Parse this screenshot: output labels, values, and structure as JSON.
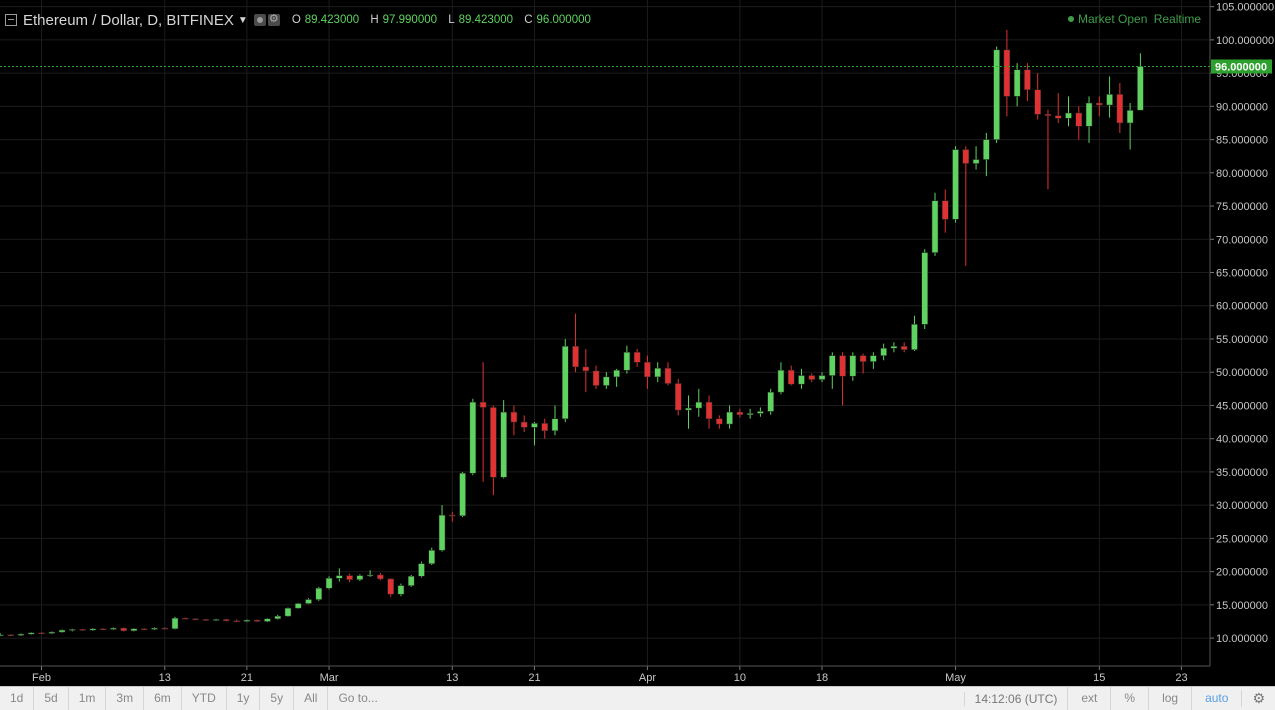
{
  "header": {
    "title": "Ethereum / Dollar, D, BITFINEX",
    "dropdown_icon": "caret-down-icon",
    "ohlc": {
      "o_label": "O",
      "o_value": "89.423000",
      "h_label": "H",
      "h_value": "97.990000",
      "l_label": "L",
      "l_value": "89.423000",
      "c_label": "C",
      "c_value": "96.000000"
    },
    "market_status": "Market Open",
    "realtime": "Realtime"
  },
  "colors": {
    "background": "#000000",
    "up": "#5fd35f",
    "down": "#e03232",
    "grid": "#1c1c1c",
    "last_price_tag": "#2ea02e"
  },
  "chart_data": {
    "type": "candlestick",
    "title": "Ethereum / Dollar, D, BITFINEX",
    "xlabel": "",
    "ylabel": "",
    "ylim": [
      5.8,
      106
    ],
    "y_ticks": [
      "105.000000",
      "100.000000",
      "95.000000",
      "90.000000",
      "85.000000",
      "80.000000",
      "75.000000",
      "70.000000",
      "65.000000",
      "60.000000",
      "55.000000",
      "50.000000",
      "45.000000",
      "40.000000",
      "35.000000",
      "30.000000",
      "25.000000",
      "20.000000",
      "15.000000",
      "10.000000"
    ],
    "x_ticks": [
      {
        "label": "Feb",
        "date": "2017-02-01"
      },
      {
        "label": "13",
        "date": "2017-02-13"
      },
      {
        "label": "21",
        "date": "2017-02-21"
      },
      {
        "label": "Mar",
        "date": "2017-03-01"
      },
      {
        "label": "13",
        "date": "2017-03-13"
      },
      {
        "label": "21",
        "date": "2017-03-21"
      },
      {
        "label": "Apr",
        "date": "2017-04-01"
      },
      {
        "label": "10",
        "date": "2017-04-10"
      },
      {
        "label": "18",
        "date": "2017-04-18"
      },
      {
        "label": "May",
        "date": "2017-05-01"
      },
      {
        "label": "15",
        "date": "2017-05-15"
      },
      {
        "label": "23",
        "date": "2017-05-23"
      }
    ],
    "grid": true,
    "last_price": 96.0,
    "last_price_label": "96.000000",
    "candles": [
      {
        "date": "2017-01-28",
        "o": 10.5,
        "h": 10.7,
        "l": 10.3,
        "c": 10.5
      },
      {
        "date": "2017-01-29",
        "o": 10.5,
        "h": 10.6,
        "l": 10.3,
        "c": 10.4
      },
      {
        "date": "2017-01-30",
        "o": 10.4,
        "h": 10.7,
        "l": 10.3,
        "c": 10.6
      },
      {
        "date": "2017-01-31",
        "o": 10.6,
        "h": 10.9,
        "l": 10.5,
        "c": 10.8
      },
      {
        "date": "2017-02-01",
        "o": 10.8,
        "h": 10.9,
        "l": 10.6,
        "c": 10.7
      },
      {
        "date": "2017-02-02",
        "o": 10.7,
        "h": 11.0,
        "l": 10.6,
        "c": 10.9
      },
      {
        "date": "2017-02-03",
        "o": 10.9,
        "h": 11.3,
        "l": 10.8,
        "c": 11.2
      },
      {
        "date": "2017-02-04",
        "o": 11.2,
        "h": 11.4,
        "l": 11.0,
        "c": 11.3
      },
      {
        "date": "2017-02-05",
        "o": 11.3,
        "h": 11.4,
        "l": 11.1,
        "c": 11.2
      },
      {
        "date": "2017-02-06",
        "o": 11.2,
        "h": 11.5,
        "l": 11.1,
        "c": 11.4
      },
      {
        "date": "2017-02-07",
        "o": 11.4,
        "h": 11.5,
        "l": 11.2,
        "c": 11.3
      },
      {
        "date": "2017-02-08",
        "o": 11.3,
        "h": 11.6,
        "l": 11.2,
        "c": 11.5
      },
      {
        "date": "2017-02-09",
        "o": 11.5,
        "h": 11.6,
        "l": 11.0,
        "c": 11.1
      },
      {
        "date": "2017-02-10",
        "o": 11.1,
        "h": 11.5,
        "l": 11.0,
        "c": 11.4
      },
      {
        "date": "2017-02-11",
        "o": 11.4,
        "h": 11.5,
        "l": 11.2,
        "c": 11.3
      },
      {
        "date": "2017-02-12",
        "o": 11.3,
        "h": 11.6,
        "l": 11.2,
        "c": 11.5
      },
      {
        "date": "2017-02-13",
        "o": 11.5,
        "h": 11.6,
        "l": 11.3,
        "c": 11.4
      },
      {
        "date": "2017-02-14",
        "o": 11.4,
        "h": 13.2,
        "l": 11.3,
        "c": 13.0
      },
      {
        "date": "2017-02-15",
        "o": 13.0,
        "h": 13.1,
        "l": 12.8,
        "c": 12.9
      },
      {
        "date": "2017-02-16",
        "o": 12.9,
        "h": 13.0,
        "l": 12.7,
        "c": 12.8
      },
      {
        "date": "2017-02-17",
        "o": 12.8,
        "h": 12.9,
        "l": 12.6,
        "c": 12.7
      },
      {
        "date": "2017-02-18",
        "o": 12.7,
        "h": 12.9,
        "l": 12.6,
        "c": 12.8
      },
      {
        "date": "2017-02-19",
        "o": 12.8,
        "h": 12.9,
        "l": 12.5,
        "c": 12.6
      },
      {
        "date": "2017-02-20",
        "o": 12.6,
        "h": 12.8,
        "l": 12.4,
        "c": 12.5
      },
      {
        "date": "2017-02-21",
        "o": 12.5,
        "h": 12.8,
        "l": 12.4,
        "c": 12.7
      },
      {
        "date": "2017-02-22",
        "o": 12.7,
        "h": 12.8,
        "l": 12.4,
        "c": 12.5
      },
      {
        "date": "2017-02-23",
        "o": 12.5,
        "h": 13.0,
        "l": 12.4,
        "c": 12.9
      },
      {
        "date": "2017-02-24",
        "o": 12.9,
        "h": 13.5,
        "l": 12.8,
        "c": 13.3
      },
      {
        "date": "2017-02-25",
        "o": 13.3,
        "h": 14.6,
        "l": 13.2,
        "c": 14.5
      },
      {
        "date": "2017-02-26",
        "o": 14.5,
        "h": 15.3,
        "l": 14.4,
        "c": 15.2
      },
      {
        "date": "2017-02-27",
        "o": 15.2,
        "h": 16.0,
        "l": 15.1,
        "c": 15.8
      },
      {
        "date": "2017-02-28",
        "o": 15.8,
        "h": 17.7,
        "l": 15.6,
        "c": 17.5
      },
      {
        "date": "2017-03-01",
        "o": 17.5,
        "h": 19.3,
        "l": 17.3,
        "c": 19.0
      },
      {
        "date": "2017-03-02",
        "o": 19.0,
        "h": 20.5,
        "l": 18.5,
        "c": 19.4
      },
      {
        "date": "2017-03-03",
        "o": 19.4,
        "h": 19.7,
        "l": 18.4,
        "c": 18.8
      },
      {
        "date": "2017-03-04",
        "o": 18.8,
        "h": 19.6,
        "l": 18.6,
        "c": 19.4
      },
      {
        "date": "2017-03-05",
        "o": 19.4,
        "h": 20.2,
        "l": 19.2,
        "c": 19.5
      },
      {
        "date": "2017-03-06",
        "o": 19.5,
        "h": 19.8,
        "l": 18.7,
        "c": 18.9
      },
      {
        "date": "2017-03-07",
        "o": 18.9,
        "h": 19.0,
        "l": 16.2,
        "c": 16.6
      },
      {
        "date": "2017-03-08",
        "o": 16.6,
        "h": 18.2,
        "l": 16.3,
        "c": 17.9
      },
      {
        "date": "2017-03-09",
        "o": 17.9,
        "h": 19.5,
        "l": 17.7,
        "c": 19.3
      },
      {
        "date": "2017-03-10",
        "o": 19.3,
        "h": 21.5,
        "l": 19.1,
        "c": 21.2
      },
      {
        "date": "2017-03-11",
        "o": 21.2,
        "h": 23.6,
        "l": 21.0,
        "c": 23.2
      },
      {
        "date": "2017-03-12",
        "o": 23.2,
        "h": 30.0,
        "l": 23.0,
        "c": 28.5
      },
      {
        "date": "2017-03-13",
        "o": 28.5,
        "h": 29.0,
        "l": 27.5,
        "c": 28.4
      },
      {
        "date": "2017-03-14",
        "o": 28.4,
        "h": 35.0,
        "l": 28.2,
        "c": 34.8
      },
      {
        "date": "2017-03-15",
        "o": 34.8,
        "h": 46.0,
        "l": 34.5,
        "c": 45.5
      },
      {
        "date": "2017-03-16",
        "o": 45.5,
        "h": 51.5,
        "l": 33.5,
        "c": 44.7
      },
      {
        "date": "2017-03-17",
        "o": 44.7,
        "h": 45.0,
        "l": 31.5,
        "c": 34.2
      },
      {
        "date": "2017-03-18",
        "o": 34.2,
        "h": 45.8,
        "l": 34.0,
        "c": 44.0
      },
      {
        "date": "2017-03-19",
        "o": 44.0,
        "h": 45.0,
        "l": 40.5,
        "c": 42.5
      },
      {
        "date": "2017-03-20",
        "o": 42.5,
        "h": 43.5,
        "l": 41.0,
        "c": 41.7
      },
      {
        "date": "2017-03-21",
        "o": 41.7,
        "h": 42.5,
        "l": 39.0,
        "c": 42.3
      },
      {
        "date": "2017-03-22",
        "o": 42.3,
        "h": 43.0,
        "l": 40.0,
        "c": 41.2
      },
      {
        "date": "2017-03-23",
        "o": 41.2,
        "h": 45.0,
        "l": 40.5,
        "c": 43.0
      },
      {
        "date": "2017-03-24",
        "o": 43.0,
        "h": 55.0,
        "l": 42.5,
        "c": 53.9
      },
      {
        "date": "2017-03-25",
        "o": 53.9,
        "h": 58.8,
        "l": 50.0,
        "c": 50.8
      },
      {
        "date": "2017-03-26",
        "o": 50.8,
        "h": 53.5,
        "l": 47.0,
        "c": 50.2
      },
      {
        "date": "2017-03-27",
        "o": 50.2,
        "h": 51.0,
        "l": 47.5,
        "c": 48.0
      },
      {
        "date": "2017-03-28",
        "o": 48.0,
        "h": 50.0,
        "l": 47.5,
        "c": 49.3
      },
      {
        "date": "2017-03-29",
        "o": 49.3,
        "h": 50.5,
        "l": 47.8,
        "c": 50.3
      },
      {
        "date": "2017-03-30",
        "o": 50.3,
        "h": 54.0,
        "l": 49.8,
        "c": 53.0
      },
      {
        "date": "2017-03-31",
        "o": 53.0,
        "h": 53.5,
        "l": 50.8,
        "c": 51.5
      },
      {
        "date": "2017-04-01",
        "o": 51.5,
        "h": 52.5,
        "l": 47.5,
        "c": 49.3
      },
      {
        "date": "2017-04-02",
        "o": 49.3,
        "h": 51.5,
        "l": 48.5,
        "c": 50.6
      },
      {
        "date": "2017-04-03",
        "o": 50.6,
        "h": 51.5,
        "l": 48.0,
        "c": 48.3
      },
      {
        "date": "2017-04-04",
        "o": 48.3,
        "h": 49.0,
        "l": 43.5,
        "c": 44.3
      },
      {
        "date": "2017-04-05",
        "o": 44.3,
        "h": 46.5,
        "l": 41.5,
        "c": 44.6
      },
      {
        "date": "2017-04-06",
        "o": 44.6,
        "h": 47.5,
        "l": 43.3,
        "c": 45.5
      },
      {
        "date": "2017-04-07",
        "o": 45.5,
        "h": 46.5,
        "l": 41.5,
        "c": 43.0
      },
      {
        "date": "2017-04-08",
        "o": 43.0,
        "h": 43.5,
        "l": 41.5,
        "c": 42.2
      },
      {
        "date": "2017-04-09",
        "o": 42.2,
        "h": 45.0,
        "l": 41.5,
        "c": 44.0
      },
      {
        "date": "2017-04-10",
        "o": 44.0,
        "h": 44.5,
        "l": 43.2,
        "c": 43.6
      },
      {
        "date": "2017-04-11",
        "o": 43.6,
        "h": 44.5,
        "l": 43.0,
        "c": 43.8
      },
      {
        "date": "2017-04-12",
        "o": 43.8,
        "h": 44.7,
        "l": 43.3,
        "c": 44.1
      },
      {
        "date": "2017-04-13",
        "o": 44.1,
        "h": 47.5,
        "l": 43.6,
        "c": 47.0
      },
      {
        "date": "2017-04-14",
        "o": 47.0,
        "h": 51.5,
        "l": 46.7,
        "c": 50.3
      },
      {
        "date": "2017-04-15",
        "o": 50.3,
        "h": 51.0,
        "l": 48.0,
        "c": 48.2
      },
      {
        "date": "2017-04-16",
        "o": 48.2,
        "h": 50.5,
        "l": 47.5,
        "c": 49.5
      },
      {
        "date": "2017-04-17",
        "o": 49.5,
        "h": 49.8,
        "l": 48.5,
        "c": 48.9
      },
      {
        "date": "2017-04-18",
        "o": 48.9,
        "h": 50.0,
        "l": 48.5,
        "c": 49.5
      },
      {
        "date": "2017-04-19",
        "o": 49.5,
        "h": 53.0,
        "l": 47.5,
        "c": 52.5
      },
      {
        "date": "2017-04-20",
        "o": 52.5,
        "h": 53.0,
        "l": 45.0,
        "c": 49.4
      },
      {
        "date": "2017-04-21",
        "o": 49.4,
        "h": 53.0,
        "l": 48.7,
        "c": 52.5
      },
      {
        "date": "2017-04-22",
        "o": 52.5,
        "h": 52.8,
        "l": 49.8,
        "c": 51.6
      },
      {
        "date": "2017-04-23",
        "o": 51.6,
        "h": 53.0,
        "l": 50.5,
        "c": 52.5
      },
      {
        "date": "2017-04-24",
        "o": 52.5,
        "h": 54.3,
        "l": 51.8,
        "c": 53.6
      },
      {
        "date": "2017-04-25",
        "o": 53.6,
        "h": 54.5,
        "l": 53.0,
        "c": 53.9
      },
      {
        "date": "2017-04-26",
        "o": 53.9,
        "h": 54.5,
        "l": 53.0,
        "c": 53.4
      },
      {
        "date": "2017-04-27",
        "o": 53.4,
        "h": 58.5,
        "l": 53.2,
        "c": 57.2
      },
      {
        "date": "2017-04-28",
        "o": 57.2,
        "h": 68.5,
        "l": 56.5,
        "c": 68.0
      },
      {
        "date": "2017-04-29",
        "o": 68.0,
        "h": 77.0,
        "l": 67.5,
        "c": 75.8
      },
      {
        "date": "2017-04-30",
        "o": 75.8,
        "h": 77.5,
        "l": 71.0,
        "c": 73.0
      },
      {
        "date": "2017-05-01",
        "o": 73.0,
        "h": 84.0,
        "l": 72.5,
        "c": 83.5
      },
      {
        "date": "2017-05-02",
        "o": 83.5,
        "h": 84.0,
        "l": 66.0,
        "c": 81.4
      },
      {
        "date": "2017-05-03",
        "o": 81.4,
        "h": 84.0,
        "l": 80.5,
        "c": 82.0
      },
      {
        "date": "2017-05-04",
        "o": 82.0,
        "h": 86.0,
        "l": 79.5,
        "c": 85.0
      },
      {
        "date": "2017-05-05",
        "o": 85.0,
        "h": 99.0,
        "l": 84.5,
        "c": 98.5
      },
      {
        "date": "2017-05-06",
        "o": 98.5,
        "h": 101.5,
        "l": 88.5,
        "c": 91.5
      },
      {
        "date": "2017-05-07",
        "o": 91.5,
        "h": 96.5,
        "l": 90.0,
        "c": 95.5
      },
      {
        "date": "2017-05-08",
        "o": 95.5,
        "h": 96.5,
        "l": 90.8,
        "c": 92.5
      },
      {
        "date": "2017-05-09",
        "o": 92.5,
        "h": 95.0,
        "l": 88.0,
        "c": 88.8
      },
      {
        "date": "2017-05-10",
        "o": 88.8,
        "h": 89.5,
        "l": 77.5,
        "c": 88.6
      },
      {
        "date": "2017-05-11",
        "o": 88.6,
        "h": 92.0,
        "l": 87.5,
        "c": 88.2
      },
      {
        "date": "2017-05-12",
        "o": 88.2,
        "h": 91.5,
        "l": 87.0,
        "c": 89.0
      },
      {
        "date": "2017-05-13",
        "o": 89.0,
        "h": 90.0,
        "l": 85.0,
        "c": 87.0
      },
      {
        "date": "2017-05-14",
        "o": 87.0,
        "h": 91.5,
        "l": 84.5,
        "c": 90.5
      },
      {
        "date": "2017-05-15",
        "o": 90.5,
        "h": 91.5,
        "l": 88.5,
        "c": 90.2
      },
      {
        "date": "2017-05-16",
        "o": 90.2,
        "h": 94.5,
        "l": 88.3,
        "c": 91.8
      },
      {
        "date": "2017-05-17",
        "o": 91.8,
        "h": 93.5,
        "l": 86.0,
        "c": 87.5
      },
      {
        "date": "2017-05-18",
        "o": 87.5,
        "h": 90.5,
        "l": 83.5,
        "c": 89.4
      },
      {
        "date": "2017-05-19",
        "o": 89.423,
        "h": 97.99,
        "l": 89.423,
        "c": 96.0
      }
    ]
  },
  "time_axis": {
    "clock": "14:12:06 (UTC)"
  },
  "bottom_toolbar": {
    "ranges": [
      "1d",
      "5d",
      "1m",
      "3m",
      "6m",
      "YTD",
      "1y",
      "5y",
      "All"
    ],
    "goto": "Go to...",
    "ext": "ext",
    "percent": "%",
    "log": "log",
    "auto": "auto",
    "settings_icon": "gear-icon"
  }
}
